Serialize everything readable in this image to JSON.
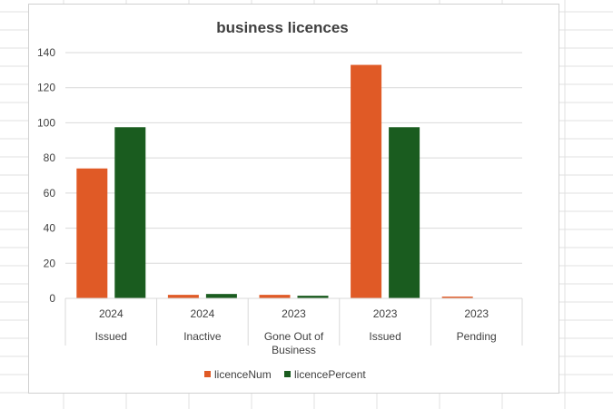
{
  "chart_data": {
    "type": "bar",
    "title": "business licences",
    "xlabel": "",
    "ylabel": "",
    "ylim": [
      0,
      140
    ],
    "yticks": [
      0,
      20,
      40,
      60,
      80,
      100,
      120,
      140
    ],
    "categories": [
      {
        "year": "2024",
        "status": [
          "Issued"
        ]
      },
      {
        "year": "2024",
        "status": [
          "Inactive"
        ]
      },
      {
        "year": "2023",
        "status": [
          "Gone Out of",
          "Business"
        ]
      },
      {
        "year": "2023",
        "status": [
          "Issued"
        ]
      },
      {
        "year": "2023",
        "status": [
          "Pending"
        ]
      }
    ],
    "series": [
      {
        "name": "licenceNum",
        "color": "#E05A26",
        "values": [
          74,
          2,
          2,
          133,
          1
        ]
      },
      {
        "name": "licencePercent",
        "color": "#1A5C1F",
        "values": [
          97.5,
          2.5,
          1.5,
          97.5,
          0
        ]
      }
    ],
    "grid": true,
    "legend": "bottom"
  }
}
